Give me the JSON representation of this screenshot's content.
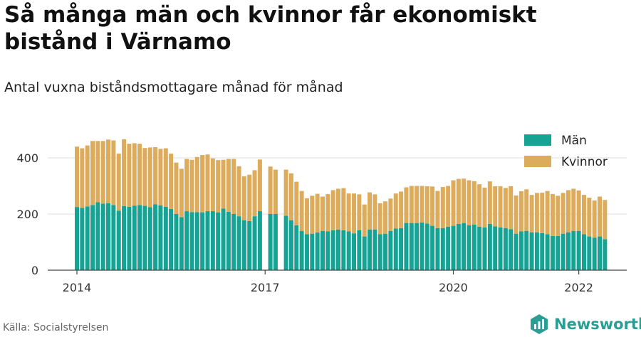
{
  "title": "Så många män och kvinnor får ekonomiskt bistånd i Värnamo",
  "subtitle": "Antal vuxna biståndsmottagare månad för månad",
  "source": "Källa: Socialstyrelsen",
  "brand": "Newsworthy",
  "colors": {
    "man": "#16a394",
    "kvinnor": "#dcac5c",
    "grid": "#dddddd"
  },
  "chart_data": {
    "type": "bar",
    "stacked": true,
    "ylim": [
      0,
      480
    ],
    "yticks": [
      0,
      200,
      400
    ],
    "x_start": "2014-01",
    "xticks": [
      {
        "label": "2014",
        "date": "2014-01"
      },
      {
        "label": "2017",
        "date": "2017-01"
      },
      {
        "label": "2020",
        "date": "2020-01"
      },
      {
        "label": "2022",
        "date": "2022-01"
      }
    ],
    "legend_position": "top-right",
    "grid": true,
    "series": [
      {
        "name": "Män",
        "values": [
          225,
          222,
          227,
          232,
          242,
          237,
          238,
          232,
          212,
          228,
          226,
          230,
          232,
          229,
          224,
          235,
          231,
          226,
          218,
          200,
          189,
          210,
          207,
          207,
          206,
          210,
          210,
          206,
          219,
          208,
          200,
          192,
          178,
          175,
          192,
          210,
          null,
          200,
          200,
          null,
          194,
          178,
          160,
          140,
          128,
          130,
          134,
          140,
          138,
          142,
          145,
          142,
          138,
          131,
          142,
          120,
          145,
          145,
          128,
          130,
          140,
          148,
          150,
          168,
          168,
          168,
          170,
          166,
          158,
          150,
          150,
          155,
          158,
          165,
          168,
          160,
          162,
          155,
          152,
          165,
          156,
          152,
          150,
          146,
          130,
          138,
          140,
          135,
          135,
          132,
          128,
          122,
          122,
          130,
          135,
          140,
          140,
          128,
          120,
          116,
          120,
          110
        ],
        "color": "#16a394"
      },
      {
        "name": "Kvinnor",
        "values": [
          215,
          212,
          217,
          228,
          218,
          223,
          227,
          230,
          203,
          238,
          224,
          222,
          218,
          206,
          213,
          203,
          201,
          208,
          197,
          183,
          172,
          186,
          186,
          196,
          204,
          202,
          188,
          186,
          174,
          188,
          196,
          178,
          156,
          165,
          164,
          184,
          null,
          169,
          158,
          null,
          164,
          167,
          155,
          142,
          128,
          135,
          138,
          122,
          133,
          143,
          145,
          150,
          135,
          142,
          128,
          114,
          132,
          125,
          110,
          115,
          115,
          125,
          130,
          127,
          132,
          132,
          130,
          133,
          140,
          132,
          146,
          145,
          162,
          160,
          158,
          160,
          155,
          151,
          142,
          151,
          143,
          147,
          143,
          153,
          136,
          143,
          148,
          133,
          140,
          144,
          154,
          149,
          143,
          145,
          150,
          150,
          144,
          140,
          138,
          132,
          142,
          140
        ],
        "color": "#dcac5c"
      }
    ]
  }
}
